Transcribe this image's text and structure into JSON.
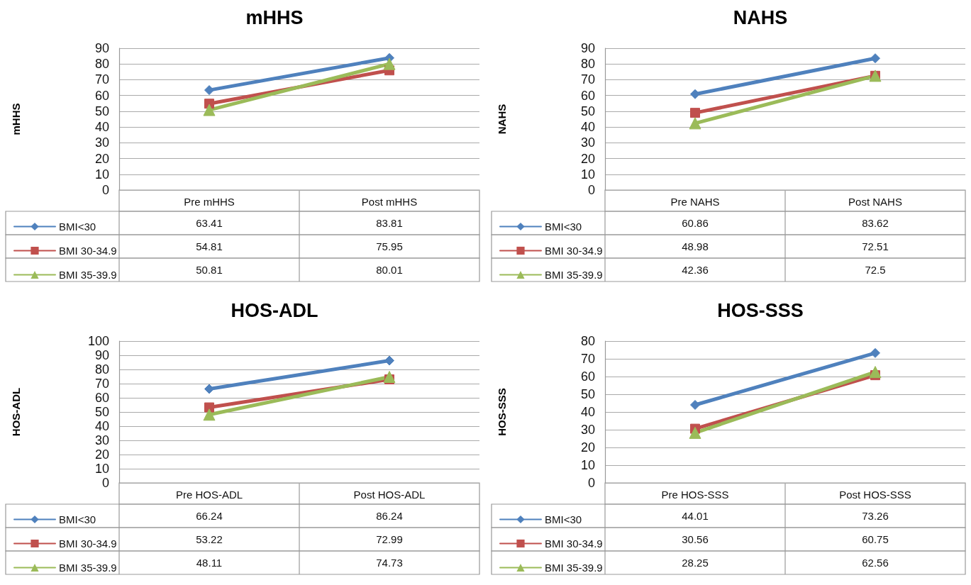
{
  "chart_data": [
    {
      "type": "line",
      "title": "mHHS",
      "ylabel": "mHHS",
      "categories": [
        "Pre mHHS",
        "Post mHHS"
      ],
      "ylim": [
        0,
        90
      ],
      "yticks": [
        0,
        10,
        20,
        30,
        40,
        50,
        60,
        70,
        80,
        90
      ],
      "grid": "y",
      "legend": "bottom",
      "data_labels": true,
      "line_style": "solid",
      "series": [
        {
          "name": "BMI<30",
          "color": "#4f81bd",
          "marker": "diamond",
          "values": [
            63.41,
            83.81
          ]
        },
        {
          "name": "BMI 30-34.9",
          "color": "#c0504d",
          "marker": "square",
          "values": [
            54.81,
            75.95
          ]
        },
        {
          "name": "BMI 35-39.9",
          "color": "#9bbb59",
          "marker": "triangle",
          "values": [
            50.81,
            80.01
          ]
        }
      ]
    },
    {
      "type": "line",
      "title": "NAHS",
      "ylabel": "NAHS",
      "categories": [
        "Pre NAHS",
        "Post NAHS"
      ],
      "ylim": [
        0,
        90
      ],
      "yticks": [
        0,
        10,
        20,
        30,
        40,
        50,
        60,
        70,
        80,
        90
      ],
      "grid": "y",
      "legend": "bottom",
      "data_labels": true,
      "line_style": "solid",
      "series": [
        {
          "name": "BMI<30",
          "color": "#4f81bd",
          "marker": "diamond",
          "values": [
            60.86,
            83.62
          ]
        },
        {
          "name": "BMI 30-34.9",
          "color": "#c0504d",
          "marker": "square",
          "values": [
            48.98,
            72.51
          ]
        },
        {
          "name": "BMI 35-39.9",
          "color": "#9bbb59",
          "marker": "triangle",
          "values": [
            42.36,
            72.5
          ]
        }
      ]
    },
    {
      "type": "line",
      "title": "HOS-ADL",
      "ylabel": "HOS-ADL",
      "categories": [
        "Pre HOS-ADL",
        "Post HOS-ADL"
      ],
      "ylim": [
        0,
        100
      ],
      "yticks": [
        0,
        10,
        20,
        30,
        40,
        50,
        60,
        70,
        80,
        90,
        100
      ],
      "grid": "y",
      "legend": "bottom",
      "data_labels": true,
      "line_style": "solid",
      "series": [
        {
          "name": "BMI<30",
          "color": "#4f81bd",
          "marker": "diamond",
          "values": [
            66.24,
            86.24
          ]
        },
        {
          "name": "BMI 30-34.9",
          "color": "#c0504d",
          "marker": "square",
          "values": [
            53.22,
            72.99
          ]
        },
        {
          "name": "BMI 35-39.9",
          "color": "#9bbb59",
          "marker": "triangle",
          "values": [
            48.11,
            74.73
          ]
        }
      ]
    },
    {
      "type": "line",
      "title": "HOS-SSS",
      "ylabel": "HOS-SSS",
      "categories": [
        "Pre HOS-SSS",
        "Post HOS-SSS"
      ],
      "ylim": [
        0,
        80
      ],
      "yticks": [
        0,
        10,
        20,
        30,
        40,
        50,
        60,
        70,
        80
      ],
      "grid": "y",
      "legend": "bottom",
      "data_labels": true,
      "line_style": "solid",
      "series": [
        {
          "name": "BMI<30",
          "color": "#4f81bd",
          "marker": "diamond",
          "values": [
            44.01,
            73.26
          ]
        },
        {
          "name": "BMI 30-34.9",
          "color": "#c0504d",
          "marker": "square",
          "values": [
            30.56,
            60.75
          ]
        },
        {
          "name": "BMI 35-39.9",
          "color": "#9bbb59",
          "marker": "triangle",
          "values": [
            28.25,
            62.56
          ]
        }
      ]
    }
  ]
}
